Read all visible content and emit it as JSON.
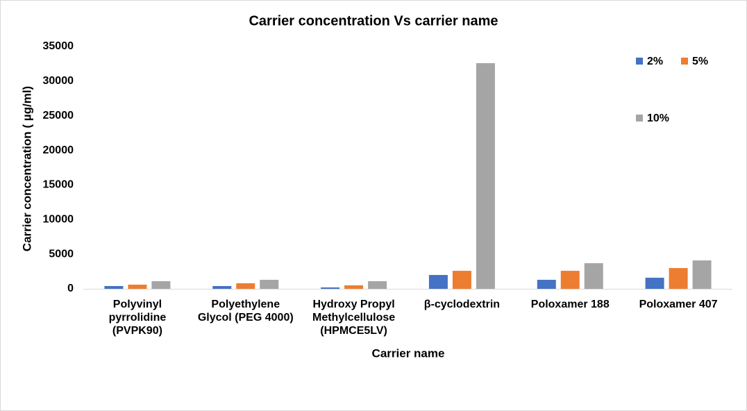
{
  "chart_data": {
    "type": "bar",
    "title": "Carrier concentration Vs carrier name",
    "x_label": "Carrier name",
    "y_label": "Carrier concentration ( µg/ml)",
    "categories": [
      "Polyvinyl pyrrolidine (PVPK90)",
      "Polyethylene Glycol (PEG 4000)",
      "Hydroxy Propyl Methylcellulose (HPMCE5LV)",
      "β-cyclodextrin",
      "Poloxamer 188",
      "Poloxamer 407"
    ],
    "series": [
      {
        "name": "2%",
        "color": "#4472c4",
        "values": [
          400,
          400,
          200,
          2000,
          1300,
          1600
        ]
      },
      {
        "name": "5%",
        "color": "#ed7d31",
        "values": [
          600,
          800,
          500,
          2600,
          2600,
          3000
        ]
      },
      {
        "name": "10%",
        "color": "#a5a5a5",
        "values": [
          1100,
          1300,
          1100,
          32600,
          3700,
          4100
        ]
      }
    ],
    "ylim": [
      0,
      35000
    ],
    "yticks": [
      0,
      5000,
      10000,
      15000,
      20000,
      25000,
      30000,
      35000
    ],
    "grid": false,
    "legend": "top-right"
  }
}
